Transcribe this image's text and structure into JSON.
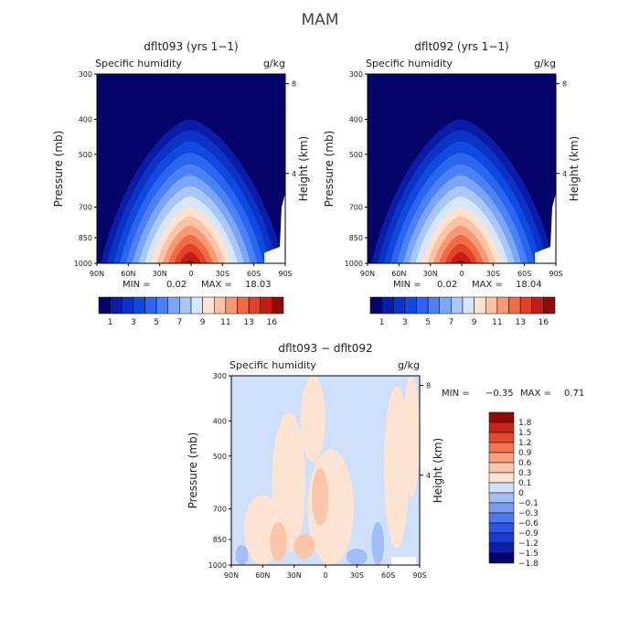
{
  "page_title": "MAM",
  "colors": {
    "scale_main": [
      "#04046b",
      "#0a1ca8",
      "#0b33c6",
      "#1049de",
      "#2a66f0",
      "#4a82f5",
      "#7aa6f7",
      "#a9c8fa",
      "#d6e6fb",
      "#fde2cf",
      "#fbc2a3",
      "#f79a73",
      "#f26b47",
      "#e3412a",
      "#c41d13",
      "#8e0d06"
    ],
    "scale_diff": [
      "#04046b",
      "#0b1fb0",
      "#1a3ad4",
      "#2d55e8",
      "#4f77f0",
      "#7a9cf4",
      "#a3bdf7",
      "#cfe0fb",
      "#fde3d2",
      "#fbc7ab",
      "#f8a27f",
      "#f37650",
      "#e44b2c",
      "#c9261a",
      "#8e0d06"
    ],
    "frame": "#000000",
    "missing": "#ffffff"
  },
  "chart_data": [
    {
      "id": "panel_a",
      "type": "heatmap",
      "title": "dflt093 (yrs 1−1)",
      "left_title": "Specific humidity",
      "units": "g/kg",
      "xlabel": "",
      "ylabel": "Pressure (mb)",
      "ylabel_right": "Height (km)",
      "x_ticks": [
        "90N",
        "60N",
        "30N",
        "0",
        "30S",
        "60S",
        "90S"
      ],
      "y_ticks": [
        300,
        400,
        500,
        700,
        850,
        1000
      ],
      "y_ticks_right": [
        4,
        8
      ],
      "x_range": [
        90,
        -90
      ],
      "y_range": [
        300,
        1000
      ],
      "y_scale": "log-pressure",
      "min_label": "MIN =",
      "min_value": "0.02",
      "max_label": "MAX =",
      "max_value": "18.03",
      "colorbar_labels": [
        "1",
        "3",
        "5",
        "7",
        "9",
        "11",
        "13",
        "16"
      ],
      "peak_value": 18.03
    },
    {
      "id": "panel_b",
      "type": "heatmap",
      "title": "dflt092 (yrs 1−1)",
      "left_title": "Specific humidity",
      "units": "g/kg",
      "xlabel": "",
      "ylabel": "Pressure (mb)",
      "ylabel_right": "Height (km)",
      "x_ticks": [
        "90N",
        "60N",
        "30N",
        "0",
        "30S",
        "60S",
        "90S"
      ],
      "y_ticks": [
        300,
        400,
        500,
        700,
        850,
        1000
      ],
      "y_ticks_right": [
        4,
        8
      ],
      "x_range": [
        90,
        -90
      ],
      "y_range": [
        300,
        1000
      ],
      "y_scale": "log-pressure",
      "min_label": "MIN =",
      "min_value": "0.02",
      "max_label": "MAX =",
      "max_value": "18.04",
      "colorbar_labels": [
        "1",
        "3",
        "5",
        "7",
        "9",
        "11",
        "13",
        "16"
      ],
      "peak_value": 18.04
    },
    {
      "id": "panel_c",
      "type": "heatmap",
      "title": "dflt093 − dflt092",
      "left_title": "Specific humidity",
      "units": "g/kg",
      "xlabel": "",
      "ylabel": "Pressure (mb)",
      "ylabel_right": "Height (km)",
      "x_ticks": [
        "90N",
        "60N",
        "30N",
        "0",
        "30S",
        "60S",
        "90S"
      ],
      "y_ticks": [
        300,
        400,
        500,
        700,
        850,
        1000
      ],
      "y_ticks_right": [
        4,
        8
      ],
      "x_range": [
        90,
        -90
      ],
      "y_range": [
        300,
        1000
      ],
      "y_scale": "log-pressure",
      "min_label": "MIN =",
      "min_value": "−0.35",
      "max_label": "MAX =",
      "max_value": "0.71",
      "colorbar_labels": [
        "1.8",
        "1.5",
        "1.2",
        "0.9",
        "0.6",
        "0.3",
        "0.1",
        "0",
        "−0.1",
        "−0.3",
        "−0.6",
        "−0.9",
        "−1.2",
        "−1.5",
        "−1.8"
      ],
      "levels": [
        -1.8,
        -1.5,
        -1.2,
        -0.9,
        -0.6,
        -0.3,
        -0.1,
        0,
        0.1,
        0.3,
        0.6,
        0.9,
        1.2,
        1.5,
        1.8
      ]
    }
  ]
}
